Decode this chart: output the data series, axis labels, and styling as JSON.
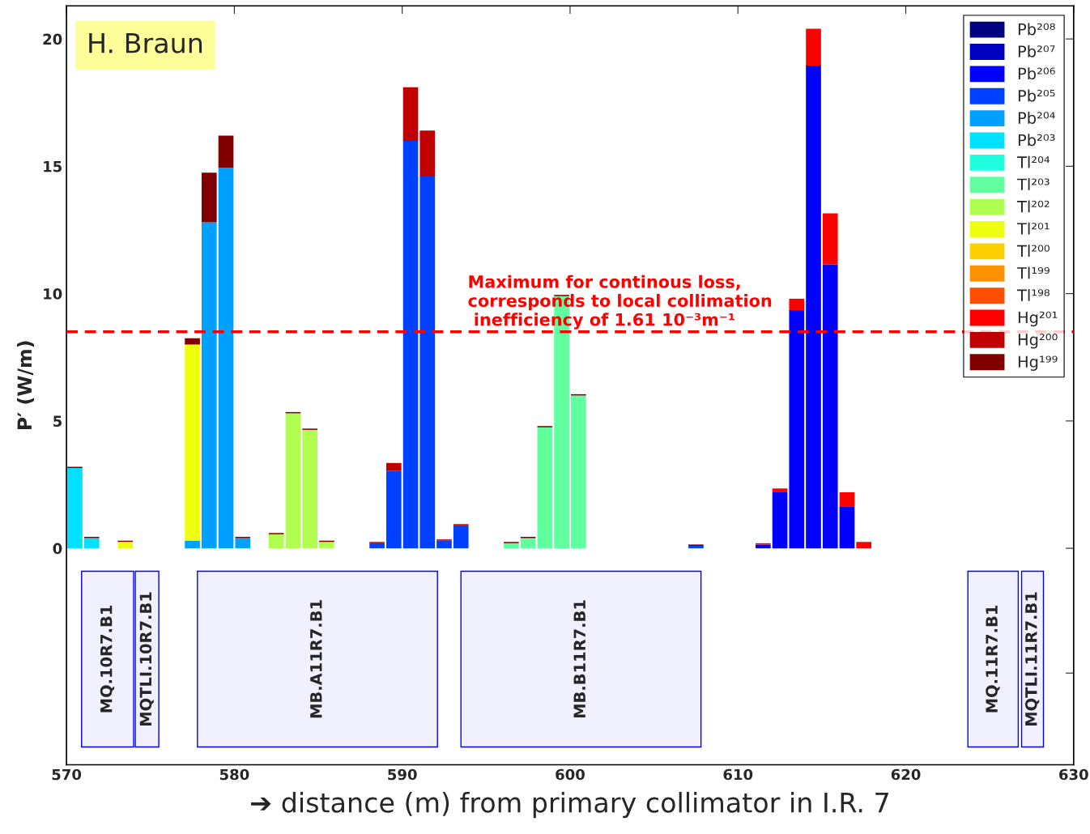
{
  "chart_data": {
    "type": "bar",
    "stacked": true,
    "xlabel": "➔ distance (m) from primary collimator in I.R. 7",
    "ylabel": "P′ (W/m)",
    "x": [
      570.5,
      571.5,
      572.5,
      573.5,
      574.5,
      575.5,
      576.5,
      577.5,
      578.5,
      579.5,
      580.5,
      581.5,
      582.5,
      583.5,
      584.5,
      585.5,
      586.5,
      587.5,
      588.5,
      589.5,
      590.5,
      591.5,
      592.5,
      593.5,
      594.5,
      595.5,
      596.5,
      597.5,
      598.5,
      599.5,
      600.5,
      601.5,
      602.5,
      603.5,
      604.5,
      605.5,
      606.5,
      607.5,
      608.5,
      609.5,
      610.5,
      611.5,
      612.5,
      613.5,
      614.5,
      615.5,
      616.5,
      617.5,
      618.5,
      619.5,
      620.5,
      621.5,
      622.5,
      623.5,
      624.5,
      625.5,
      626.5,
      627.5,
      628.5,
      629.5
    ],
    "xlim": [
      570,
      630
    ],
    "xticks": [
      570,
      580,
      590,
      600,
      610,
      620,
      630
    ],
    "ylim": [
      -8.5,
      21.3
    ],
    "yticks": [
      {
        "value": -4.9,
        "label": null
      },
      0,
      5,
      10,
      15,
      20
    ],
    "grid": false,
    "legend": "top right",
    "series": [
      {
        "name": "Pb²⁰⁸",
        "color": "#000080",
        "values": [
          0,
          0,
          0,
          0,
          0,
          0,
          0,
          0,
          0,
          0,
          0,
          0,
          0,
          0,
          0,
          0,
          0,
          0,
          0,
          0,
          0,
          0,
          0,
          0,
          0,
          0,
          0,
          0,
          0,
          0,
          0,
          0,
          0,
          0,
          0,
          0,
          0,
          0,
          0,
          0,
          0,
          0,
          0,
          0,
          0,
          0,
          0,
          0,
          0,
          0,
          0,
          0,
          0,
          0,
          0,
          0,
          0,
          0,
          0,
          0
        ]
      },
      {
        "name": "Pb²⁰⁷",
        "color": "#0000c0",
        "values": [
          0,
          0,
          0,
          0,
          0,
          0,
          0,
          0,
          0,
          0,
          0,
          0,
          0,
          0,
          0,
          0,
          0,
          0,
          0,
          0,
          0,
          0,
          0,
          0,
          0,
          0,
          0,
          0,
          0,
          0,
          0,
          0,
          0,
          0,
          0,
          0,
          0,
          0,
          0,
          0,
          0,
          0,
          0,
          0,
          0,
          0,
          0,
          0,
          0,
          0,
          0,
          0,
          0,
          0,
          0,
          0,
          0,
          0,
          0,
          0
        ]
      },
      {
        "name": "Pb²⁰⁶",
        "color": "#0000ff",
        "values": [
          0,
          0,
          0,
          0,
          0,
          0,
          0,
          0,
          0,
          0,
          0,
          0,
          0,
          0,
          0,
          0,
          0,
          0,
          0,
          0,
          0,
          0,
          0,
          0,
          0,
          0,
          0,
          0,
          0,
          0,
          0,
          0,
          0,
          0,
          0,
          0,
          0,
          0,
          0,
          0,
          0,
          0.15,
          2.2,
          9.35,
          18.95,
          11.15,
          1.65,
          0,
          0,
          0,
          0,
          0,
          0,
          0,
          0,
          0,
          0,
          0,
          0,
          0
        ]
      },
      {
        "name": "Pb²⁰⁵",
        "color": "#0040ff",
        "values": [
          0,
          0,
          0,
          0,
          0,
          0,
          0,
          0,
          0,
          0,
          0,
          0,
          0,
          0,
          0,
          0,
          0,
          0,
          0.2,
          3.05,
          16.0,
          14.6,
          0.3,
          0.9,
          0,
          0,
          0,
          0,
          0,
          0,
          0,
          0,
          0,
          0,
          0,
          0,
          0,
          0.1,
          0,
          0,
          0,
          0,
          0,
          0,
          0,
          0,
          0,
          0,
          0,
          0,
          0,
          0,
          0,
          0,
          0,
          0,
          0,
          0,
          0,
          0
        ]
      },
      {
        "name": "Pb²⁰⁴",
        "color": "#00a0ff",
        "values": [
          0,
          0,
          0,
          0,
          0,
          0,
          0,
          0.3,
          12.8,
          14.95,
          0.4,
          0,
          0,
          0,
          0,
          0,
          0,
          0,
          0,
          0,
          0,
          0,
          0,
          0,
          0,
          0,
          0,
          0,
          0,
          0,
          0,
          0,
          0,
          0,
          0,
          0,
          0,
          0,
          0,
          0,
          0,
          0,
          0,
          0,
          0,
          0,
          0,
          0,
          0,
          0,
          0,
          0,
          0,
          0,
          0,
          0,
          0,
          0,
          0,
          0
        ]
      },
      {
        "name": "Pb²⁰³",
        "color": "#00e0ff",
        "values": [
          3.15,
          0.4,
          0,
          0,
          0,
          0,
          0,
          0,
          0,
          0,
          0,
          0,
          0,
          0,
          0,
          0,
          0,
          0,
          0,
          0,
          0,
          0,
          0,
          0,
          0,
          0,
          0,
          0,
          0,
          0,
          0,
          0,
          0,
          0,
          0,
          0,
          0,
          0,
          0,
          0,
          0,
          0,
          0,
          0,
          0,
          0,
          0,
          0,
          0,
          0,
          0,
          0,
          0,
          0,
          0,
          0,
          0,
          0,
          0,
          0
        ]
      },
      {
        "name": "Tl²⁰⁴",
        "color": "#20ffe0",
        "values": [
          0,
          0,
          0,
          0,
          0,
          0,
          0,
          0,
          0,
          0,
          0,
          0,
          0,
          0,
          0,
          0,
          0,
          0,
          0,
          0,
          0,
          0,
          0,
          0,
          0,
          0,
          0,
          0,
          0,
          0,
          0,
          0,
          0,
          0,
          0,
          0,
          0,
          0,
          0,
          0,
          0,
          0,
          0,
          0,
          0,
          0,
          0,
          0,
          0,
          0,
          0,
          0,
          0,
          0,
          0,
          0,
          0,
          0,
          0,
          0
        ]
      },
      {
        "name": "Tl²⁰³",
        "color": "#60ffa0",
        "values": [
          0,
          0,
          0,
          0,
          0,
          0,
          0,
          0,
          0,
          0,
          0,
          0,
          0,
          0,
          0,
          0,
          0,
          0,
          0,
          0,
          0,
          0,
          0,
          0,
          0,
          0,
          0.2,
          0.4,
          4.75,
          9.9,
          6.0,
          0,
          0,
          0,
          0,
          0,
          0,
          0,
          0,
          0,
          0,
          0,
          0,
          0,
          0,
          0,
          0,
          0,
          0,
          0,
          0,
          0,
          0,
          0,
          0,
          0,
          0,
          0,
          0,
          0
        ]
      },
      {
        "name": "Tl²⁰²",
        "color": "#b0ff50",
        "values": [
          0,
          0,
          0,
          0,
          0,
          0,
          0,
          0,
          0,
          0,
          0,
          0,
          0.55,
          5.3,
          4.65,
          0.25,
          0,
          0,
          0,
          0,
          0,
          0,
          0,
          0,
          0,
          0,
          0,
          0,
          0,
          0,
          0,
          0,
          0,
          0,
          0,
          0,
          0,
          0,
          0,
          0,
          0,
          0,
          0,
          0,
          0,
          0,
          0,
          0,
          0,
          0,
          0,
          0,
          0,
          0,
          0,
          0,
          0,
          0,
          0,
          0
        ]
      },
      {
        "name": "Tl²⁰¹",
        "color": "#eeff10",
        "values": [
          0,
          0,
          0,
          0.25,
          0,
          0,
          0,
          7.7,
          0,
          0,
          0,
          0,
          0,
          0,
          0,
          0,
          0,
          0,
          0,
          0,
          0,
          0,
          0,
          0,
          0,
          0,
          0,
          0,
          0,
          0,
          0,
          0,
          0,
          0,
          0,
          0,
          0,
          0,
          0,
          0,
          0,
          0,
          0,
          0,
          0,
          0,
          0,
          0,
          0,
          0,
          0,
          0,
          0,
          0,
          0,
          0,
          0,
          0,
          0,
          0
        ]
      },
      {
        "name": "Tl²⁰⁰",
        "color": "#ffd000",
        "values": [
          0,
          0,
          0,
          0,
          0,
          0,
          0,
          0,
          0,
          0,
          0,
          0,
          0,
          0,
          0,
          0,
          0,
          0,
          0,
          0,
          0,
          0,
          0,
          0,
          0,
          0,
          0,
          0,
          0,
          0,
          0,
          0,
          0,
          0,
          0,
          0,
          0,
          0,
          0,
          0,
          0,
          0,
          0,
          0,
          0,
          0,
          0,
          0,
          0,
          0,
          0,
          0,
          0,
          0,
          0,
          0,
          0,
          0,
          0,
          0
        ]
      },
      {
        "name": "Tl¹⁹⁹",
        "color": "#ff9000",
        "values": [
          0,
          0,
          0,
          0,
          0,
          0,
          0,
          0,
          0,
          0,
          0,
          0,
          0,
          0,
          0,
          0,
          0,
          0,
          0,
          0,
          0,
          0,
          0,
          0,
          0,
          0,
          0,
          0,
          0,
          0,
          0,
          0,
          0,
          0,
          0,
          0,
          0,
          0,
          0,
          0,
          0,
          0,
          0,
          0,
          0,
          0,
          0,
          0,
          0,
          0,
          0,
          0,
          0,
          0,
          0,
          0,
          0,
          0,
          0,
          0
        ]
      },
      {
        "name": "Tl¹⁹⁸",
        "color": "#ff5000",
        "values": [
          0,
          0,
          0,
          0,
          0,
          0,
          0,
          0,
          0,
          0,
          0,
          0,
          0,
          0,
          0,
          0,
          0,
          0,
          0,
          0,
          0,
          0,
          0,
          0,
          0,
          0,
          0,
          0,
          0,
          0,
          0,
          0,
          0,
          0,
          0,
          0,
          0,
          0,
          0,
          0,
          0,
          0,
          0,
          0,
          0,
          0,
          0,
          0,
          0,
          0,
          0,
          0,
          0,
          0,
          0,
          0,
          0,
          0,
          0,
          0
        ]
      },
      {
        "name": "Hg²⁰¹",
        "color": "#ff0000",
        "values": [
          0,
          0,
          0,
          0,
          0,
          0,
          0,
          0,
          0,
          0,
          0,
          0,
          0,
          0,
          0,
          0,
          0,
          0,
          0,
          0,
          0,
          0,
          0,
          0,
          0,
          0,
          0,
          0,
          0,
          0,
          0,
          0,
          0,
          0,
          0,
          0,
          0,
          0,
          0,
          0,
          0,
          0.05,
          0.15,
          0.45,
          1.45,
          2.0,
          0.55,
          0.25,
          0,
          0,
          0,
          0,
          0,
          0,
          0,
          0,
          0,
          0,
          0,
          0
        ]
      },
      {
        "name": "Hg²⁰⁰",
        "color": "#c00000",
        "values": [
          0,
          0,
          0,
          0,
          0,
          0,
          0,
          0,
          0,
          0,
          0,
          0,
          0,
          0,
          0,
          0,
          0,
          0,
          0.05,
          0.3,
          2.1,
          1.8,
          0.05,
          0.05,
          0,
          0,
          0,
          0,
          0,
          0,
          0,
          0,
          0,
          0,
          0,
          0,
          0,
          0,
          0,
          0,
          0,
          0,
          0,
          0,
          0,
          0,
          0,
          0,
          0,
          0,
          0,
          0,
          0,
          0,
          0,
          0,
          0,
          0,
          0,
          0
        ]
      },
      {
        "name": "Hg¹⁹⁹",
        "color": "#800000",
        "values": [
          0.05,
          0.05,
          0,
          0.05,
          0,
          0,
          0,
          0.25,
          1.95,
          1.25,
          0.05,
          0,
          0.05,
          0.05,
          0.05,
          0.05,
          0,
          0,
          0,
          0,
          0,
          0,
          0,
          0,
          0,
          0,
          0.05,
          0.05,
          0.05,
          0.05,
          0.05,
          0,
          0,
          0,
          0,
          0,
          0,
          0.05,
          0,
          0,
          0,
          0,
          0,
          0,
          0,
          0,
          0,
          0,
          0,
          0,
          0,
          0,
          0,
          0,
          0,
          0,
          0,
          0,
          0,
          0
        ]
      }
    ],
    "ref_lines": [
      {
        "axis": "y",
        "value": 8.5,
        "color": "#ff0000",
        "line_style": "dashed",
        "label": "Maximum for continous loss,\ncorresponds to local collimation\n inefficiency of 1.61 10⁻³m⁻¹"
      }
    ],
    "bands": [
      {
        "axis": "x",
        "from": 570.9,
        "to": 574.0,
        "label": "MQ.10R7.B1",
        "color": "#0000ff"
      },
      {
        "axis": "x",
        "from": 574.1,
        "to": 575.5,
        "label": "MQTLI.10R7.B1",
        "color": "#0000ff"
      },
      {
        "axis": "x",
        "from": 577.8,
        "to": 592.1,
        "label": "MB.A11R7.B1",
        "color": "#0000ff"
      },
      {
        "axis": "x",
        "from": 593.5,
        "to": 607.8,
        "label": "MB.B11R7.B1",
        "color": "#0000ff"
      },
      {
        "axis": "x",
        "from": 623.7,
        "to": 626.7,
        "label": "MQ.11R7.B1",
        "color": "#0000ff"
      },
      {
        "axis": "x",
        "from": 626.9,
        "to": 628.2,
        "label": "MQTLI.11R7.B1",
        "color": "#0000ff"
      }
    ],
    "annotations": [
      "H. Braun"
    ]
  }
}
